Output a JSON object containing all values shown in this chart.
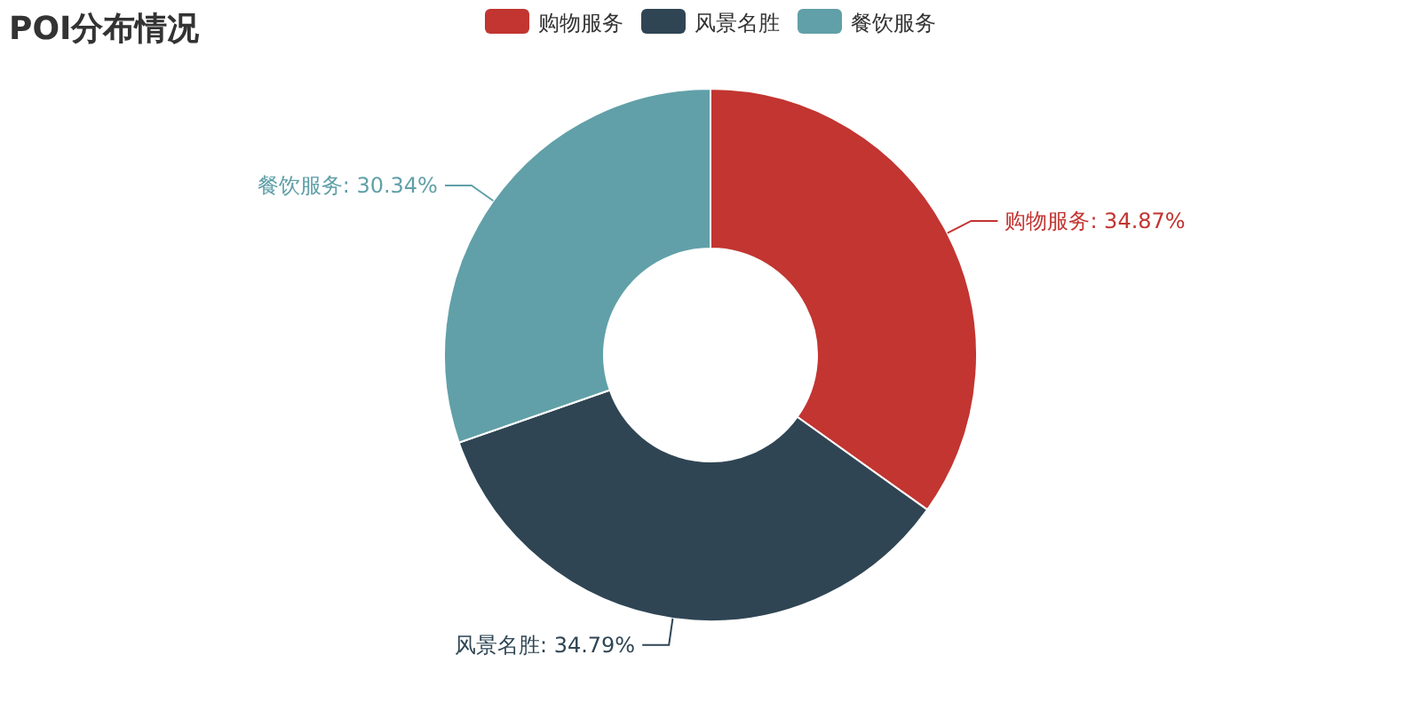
{
  "chart_data": {
    "type": "donut",
    "title": "POI分布情况",
    "categories": [
      "购物服务",
      "风景名胜",
      "餐饮服务"
    ],
    "values": [
      34.87,
      34.79,
      30.34
    ],
    "colors": [
      "#c23531",
      "#2f4554",
      "#61a0a8"
    ],
    "value_labels": [
      "购物服务: 34.87%",
      "风景名胜: 34.79%",
      "餐饮服务: 30.34%"
    ],
    "legend": "top"
  }
}
